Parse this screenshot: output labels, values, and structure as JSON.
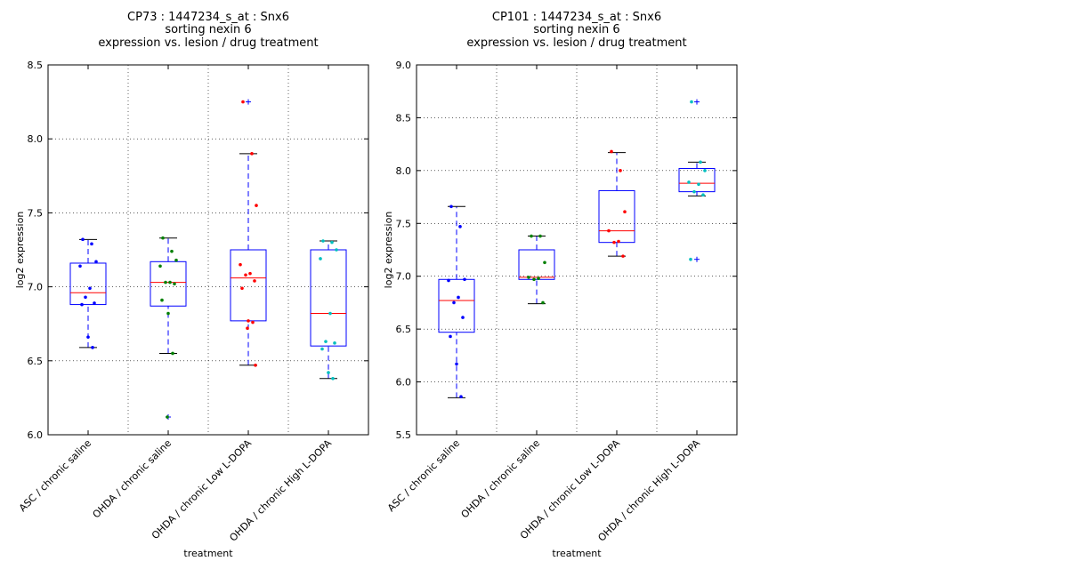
{
  "chart_data": [
    {
      "type": "box",
      "title": [
        "CP73 : 1447234_s_at : Snx6",
        "sorting nexin 6",
        "expression vs. lesion / drug treatment"
      ],
      "xlabel": "treatment",
      "ylabel": "log2 expression",
      "ylim": [
        6.0,
        8.5
      ],
      "yticks": [
        "6.0",
        "6.5",
        "7.0",
        "7.5",
        "8.0",
        "8.5"
      ],
      "grid": true,
      "categories": [
        "ASC / chronic saline",
        "OHDA / chronic saline",
        "OHDA / chronic Low L-DOPA",
        "OHDA / chronic High L-DOPA"
      ],
      "boxes": [
        {
          "whisker_low": 6.59,
          "q1": 6.88,
          "median": 6.96,
          "q3": 7.16,
          "whisker_high": 7.32,
          "outliers": []
        },
        {
          "whisker_low": 6.55,
          "q1": 6.87,
          "median": 7.03,
          "q3": 7.17,
          "whisker_high": 7.33,
          "outliers": [
            6.12
          ]
        },
        {
          "whisker_low": 6.47,
          "q1": 6.77,
          "median": 7.06,
          "q3": 7.25,
          "whisker_high": 7.9,
          "outliers": [
            8.25
          ]
        },
        {
          "whisker_low": 6.38,
          "q1": 6.6,
          "median": 6.82,
          "q3": 7.25,
          "whisker_high": 7.31,
          "outliers": []
        }
      ],
      "points": [
        [
          7.32,
          7.29,
          7.17,
          7.14,
          6.99,
          6.93,
          6.89,
          6.88,
          6.66,
          6.59
        ],
        [
          7.33,
          7.24,
          7.18,
          7.14,
          7.03,
          7.03,
          7.02,
          6.91,
          6.82,
          6.55,
          6.12
        ],
        [
          8.25,
          7.9,
          7.55,
          7.15,
          7.09,
          7.08,
          7.04,
          6.99,
          6.77,
          6.76,
          6.72,
          6.47
        ],
        [
          7.31,
          7.3,
          7.25,
          7.19,
          6.82,
          6.63,
          6.62,
          6.58,
          6.42,
          6.38
        ]
      ],
      "point_colors": [
        "#0000ff",
        "#008000",
        "#ff0000",
        "#00bfbf"
      ]
    },
    {
      "type": "box",
      "title": [
        "CP101 : 1447234_s_at : Snx6",
        "sorting nexin 6",
        "expression vs. lesion / drug treatment"
      ],
      "xlabel": "treatment",
      "ylabel": "log2 expression",
      "ylim": [
        5.5,
        9.0
      ],
      "yticks": [
        "5.5",
        "6.0",
        "6.5",
        "7.0",
        "7.5",
        "8.0",
        "8.5",
        "9.0"
      ],
      "grid": true,
      "categories": [
        "ASC / chronic saline",
        "OHDA / chronic saline",
        "OHDA / chronic Low L-DOPA",
        "OHDA / chronic High L-DOPA"
      ],
      "boxes": [
        {
          "whisker_low": 5.85,
          "q1": 6.47,
          "median": 6.77,
          "q3": 6.97,
          "whisker_high": 7.66,
          "outliers": []
        },
        {
          "whisker_low": 6.74,
          "q1": 6.97,
          "median": 6.99,
          "q3": 7.25,
          "whisker_high": 7.38,
          "outliers": []
        },
        {
          "whisker_low": 7.19,
          "q1": 7.32,
          "median": 7.43,
          "q3": 7.81,
          "whisker_high": 8.17,
          "outliers": []
        },
        {
          "whisker_low": 7.76,
          "q1": 7.8,
          "median": 7.88,
          "q3": 8.02,
          "whisker_high": 8.08,
          "outliers": [
            8.65,
            7.16
          ]
        }
      ],
      "points": [
        [
          7.66,
          7.47,
          6.97,
          6.96,
          6.8,
          6.75,
          6.61,
          6.43,
          6.17,
          5.86
        ],
        [
          7.38,
          7.38,
          7.13,
          6.99,
          6.98,
          6.97,
          6.75
        ],
        [
          8.18,
          8.0,
          7.61,
          7.43,
          7.33,
          7.32,
          7.19
        ],
        [
          8.65,
          8.08,
          8.0,
          7.89,
          7.87,
          7.8,
          7.77,
          7.16
        ]
      ],
      "point_colors": [
        "#0000ff",
        "#008000",
        "#ff0000",
        "#00bfbf"
      ]
    }
  ]
}
